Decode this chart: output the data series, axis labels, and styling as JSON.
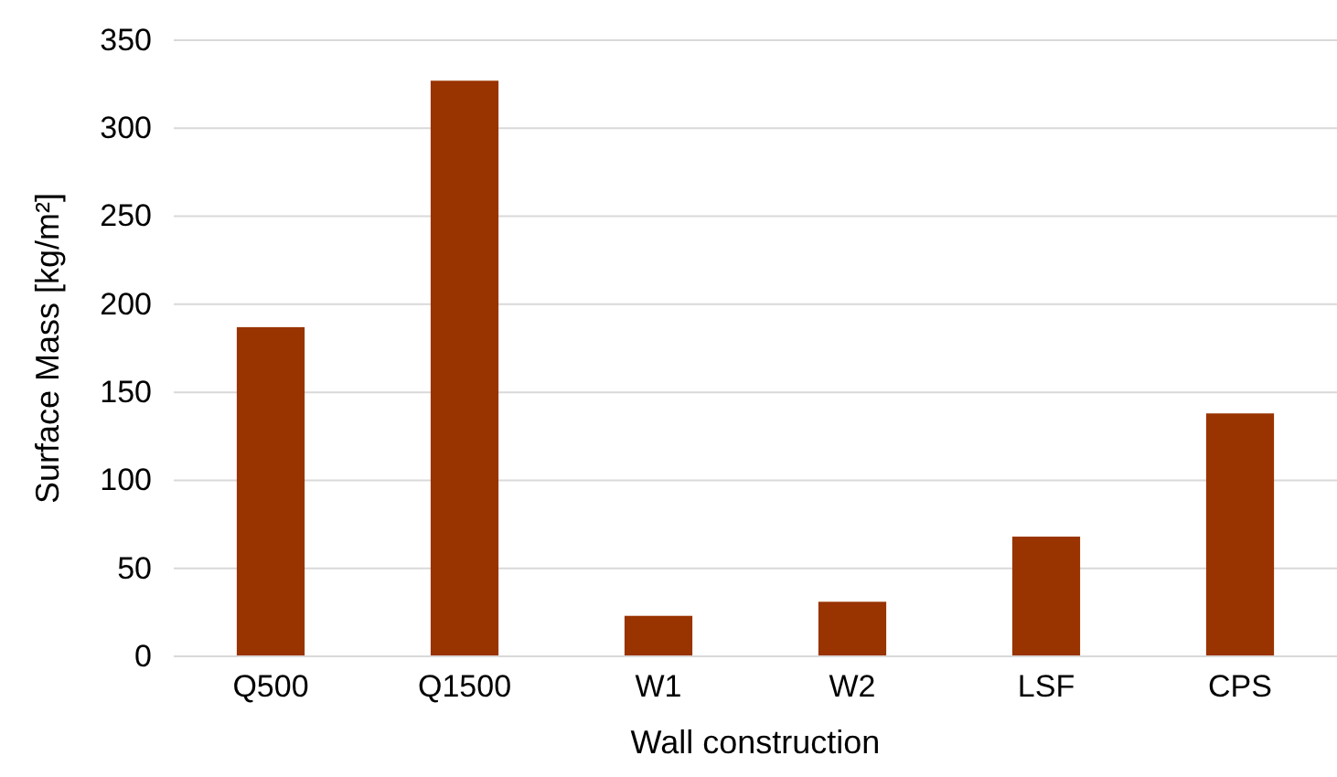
{
  "chart_data": {
    "type": "bar",
    "xlabel": "Wall construction",
    "ylabel": "Surface Mass [kg/m²]",
    "categories": [
      "Q500",
      "Q1500",
      "W1",
      "W2",
      "LSF",
      "CPS"
    ],
    "values": [
      187,
      327,
      23,
      31,
      68,
      138
    ],
    "color": "#993300",
    "ylim": [
      0,
      350
    ],
    "yticks": [
      0,
      50,
      100,
      150,
      200,
      250,
      300,
      350
    ],
    "grid": "y"
  }
}
